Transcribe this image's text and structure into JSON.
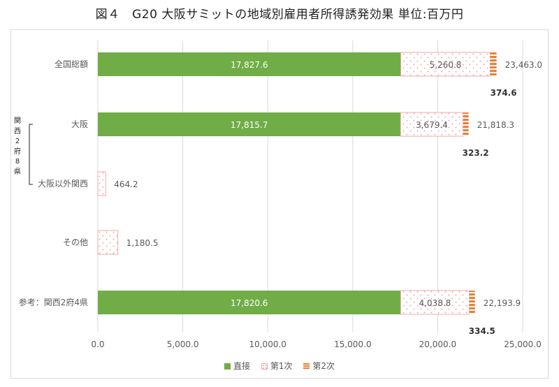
{
  "title": "図４　G20 大阪サミットの地域別雇用者所得誘発効果 単位:百万円",
  "group_label": [
    "関",
    "西",
    "2",
    "府",
    "8",
    "県"
  ],
  "colors": {
    "direct": "#70ad47",
    "first": "#f4a7a7",
    "second": "#ed7d31",
    "grid": "#d9d9d9",
    "text": "#595959"
  },
  "legend": [
    {
      "name": "直接",
      "style": "solid"
    },
    {
      "name": "第1次",
      "style": "dots"
    },
    {
      "name": "第2次",
      "style": "stripes"
    }
  ],
  "chart_data": {
    "type": "bar",
    "orientation": "horizontal",
    "stacked": true,
    "title": "図４　G20 大阪サミットの地域別雇用者所得誘発効果 単位:百万円",
    "categories": [
      "全国総額",
      "大阪",
      "大阪以外関西",
      "その他",
      "参考：関西2府4県"
    ],
    "series": [
      {
        "name": "直接",
        "values": [
          17827.6,
          17815.7,
          0,
          0,
          17820.6
        ],
        "labels": [
          "17,827.6",
          "17,815.7",
          "",
          "",
          "17,820.6"
        ]
      },
      {
        "name": "第1次",
        "values": [
          5260.8,
          3679.4,
          464.2,
          1180.5,
          4038.8
        ],
        "labels": [
          "5,260.8",
          "3,679.4",
          "",
          "",
          "4,038.8"
        ]
      },
      {
        "name": "第2次",
        "values": [
          374.6,
          323.2,
          0,
          0,
          334.5
        ],
        "labels": [
          "374.6",
          "323.2",
          "",
          "",
          "334.5"
        ]
      }
    ],
    "totals": [
      "23,463.0",
      "21,818.3",
      "464.2",
      "1,180.5",
      "22,193.9"
    ],
    "xlim": [
      0,
      25000
    ],
    "xticks": [
      0,
      5000,
      10000,
      15000,
      20000,
      25000
    ],
    "xtick_labels": [
      "0.0",
      "5,000.0",
      "10,000.0",
      "15,000.0",
      "20,000.0",
      "25,000.0"
    ],
    "grid": true,
    "legend_position": "bottom"
  }
}
